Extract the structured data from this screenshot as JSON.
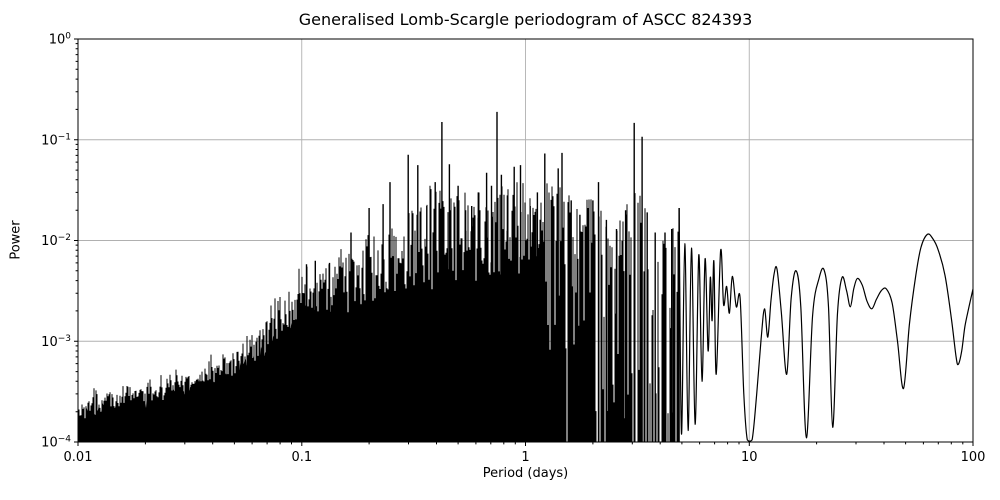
{
  "figure": {
    "background": "#ffffff",
    "text_color": "#000000"
  },
  "chart_data": {
    "type": "line",
    "title": "Generalised Lomb-Scargle periodogram of ASCC 824393",
    "xlabel": "Period (days)",
    "ylabel": "Power",
    "x_scale": "log",
    "y_scale": "log",
    "xlim": [
      0.01,
      100
    ],
    "ylim": [
      0.0001,
      1
    ],
    "grid": true,
    "legend": "none",
    "line_color": "#000000",
    "grid_color": "#b0b0b0",
    "x_ticks": [
      {
        "value": 0.01,
        "label": "0.01"
      },
      {
        "value": 0.1,
        "label": "0.1"
      },
      {
        "value": 1,
        "label": "1"
      },
      {
        "value": 10,
        "label": "10"
      },
      {
        "value": 100,
        "label": "100"
      }
    ],
    "y_ticks": [
      {
        "value": 1,
        "base": "10",
        "exp": "0"
      },
      {
        "value": 0.1,
        "base": "10",
        "exp": "−1"
      },
      {
        "value": 0.01,
        "base": "10",
        "exp": "−2"
      },
      {
        "value": 0.001,
        "base": "10",
        "exp": "−3"
      },
      {
        "value": 0.0001,
        "base": "10",
        "exp": "−4"
      }
    ],
    "noise_floor": 0.0001,
    "dense_range": [
      0.01,
      4.86
    ],
    "noise_envelope": [
      [
        0.01,
        0.00028
      ],
      [
        0.02,
        0.0004
      ],
      [
        0.03,
        0.0005
      ],
      [
        0.05,
        0.00085
      ],
      [
        0.07,
        0.0018
      ],
      [
        0.09,
        0.0045
      ],
      [
        0.11,
        0.0055
      ],
      [
        0.14,
        0.007
      ],
      [
        0.17,
        0.009
      ],
      [
        0.2,
        0.012
      ],
      [
        0.24,
        0.012
      ],
      [
        0.28,
        0.018
      ],
      [
        0.33,
        0.03
      ],
      [
        0.38,
        0.035
      ],
      [
        0.43,
        0.04
      ],
      [
        0.48,
        0.035
      ],
      [
        0.55,
        0.028
      ],
      [
        0.62,
        0.035
      ],
      [
        0.7,
        0.045
      ],
      [
        0.78,
        0.04
      ],
      [
        0.88,
        0.032
      ],
      [
        1.0,
        0.035
      ],
      [
        1.15,
        0.032
      ],
      [
        1.3,
        0.035
      ],
      [
        1.5,
        0.035
      ],
      [
        1.7,
        0.022
      ],
      [
        1.9,
        0.026
      ],
      [
        2.1,
        0.032
      ],
      [
        2.4,
        0.018
      ],
      [
        2.7,
        0.022
      ],
      [
        3.0,
        0.035
      ],
      [
        3.3,
        0.03
      ],
      [
        3.6,
        0.014
      ],
      [
        4.0,
        0.013
      ],
      [
        4.4,
        0.014
      ],
      [
        4.86,
        0.021
      ]
    ],
    "mass_top": [
      [
        0.01,
        0.000165
      ],
      [
        0.02,
        0.00025
      ],
      [
        0.03,
        0.0003
      ],
      [
        0.05,
        0.00045
      ],
      [
        0.07,
        0.0008
      ],
      [
        0.1,
        0.0016
      ],
      [
        0.14,
        0.0019
      ],
      [
        0.2,
        0.002
      ],
      [
        0.27,
        0.0021
      ],
      [
        0.35,
        0.0025
      ],
      [
        0.5,
        0.003
      ],
      [
        0.65,
        0.0035
      ],
      [
        0.74,
        0.004
      ],
      [
        0.9,
        0.0035
      ],
      [
        1.0,
        0.003
      ],
      [
        1.25,
        0.0025
      ]
    ],
    "major_peaks": [
      [
        0.105,
        0.0058
      ],
      [
        0.115,
        0.0063
      ],
      [
        0.133,
        0.006
      ],
      [
        0.166,
        0.012
      ],
      [
        0.2,
        0.021
      ],
      [
        0.231,
        0.023
      ],
      [
        0.248,
        0.038
      ],
      [
        0.299,
        0.071
      ],
      [
        0.33,
        0.056
      ],
      [
        0.362,
        0.022
      ],
      [
        0.395,
        0.038
      ],
      [
        0.423,
        0.15
      ],
      [
        0.457,
        0.057
      ],
      [
        0.5,
        0.035
      ],
      [
        0.54,
        0.02
      ],
      [
        0.575,
        0.022
      ],
      [
        0.615,
        0.03
      ],
      [
        0.67,
        0.047
      ],
      [
        0.705,
        0.035
      ],
      [
        0.746,
        0.189
      ],
      [
        0.78,
        0.045
      ],
      [
        0.83,
        0.028
      ],
      [
        0.89,
        0.054
      ],
      [
        0.95,
        0.056
      ],
      [
        1.05,
        0.022
      ],
      [
        1.13,
        0.03
      ],
      [
        1.22,
        0.073
      ],
      [
        1.4,
        0.052
      ],
      [
        1.456,
        0.074
      ],
      [
        1.6,
        0.025
      ],
      [
        1.75,
        0.018
      ],
      [
        1.9,
        0.021
      ],
      [
        2.0,
        0.025
      ],
      [
        2.12,
        0.038
      ],
      [
        2.3,
        0.016
      ],
      [
        2.55,
        0.013
      ],
      [
        2.8,
        0.02
      ],
      [
        3.06,
        0.147
      ],
      [
        3.32,
        0.107
      ],
      [
        3.5,
        0.019
      ],
      [
        3.8,
        0.012
      ],
      [
        4.2,
        0.012
      ],
      [
        4.5,
        0.013
      ],
      [
        4.86,
        0.021
      ]
    ],
    "smooth_tail": [
      [
        4.86,
        0.021
      ],
      [
        4.98,
        0.00012
      ],
      [
        5.15,
        0.0093
      ],
      [
        5.33,
        0.00013
      ],
      [
        5.52,
        0.0084
      ],
      [
        5.73,
        0.00015
      ],
      [
        5.95,
        0.0072
      ],
      [
        6.15,
        0.0004
      ],
      [
        6.35,
        0.0066
      ],
      [
        6.55,
        0.0008
      ],
      [
        6.7,
        0.0043
      ],
      [
        6.82,
        0.0016
      ],
      [
        6.95,
        0.0062
      ],
      [
        7.12,
        0.00047
      ],
      [
        7.45,
        0.0079
      ],
      [
        7.68,
        0.0023
      ],
      [
        7.92,
        0.0035
      ],
      [
        8.15,
        0.0019
      ],
      [
        8.4,
        0.0044
      ],
      [
        8.75,
        0.0022
      ],
      [
        9.1,
        0.0027
      ],
      [
        9.45,
        0.0003
      ],
      [
        9.8,
        0.000105
      ],
      [
        10.3,
        0.000105
      ],
      [
        10.8,
        0.0003
      ],
      [
        11.3,
        0.00105
      ],
      [
        11.7,
        0.0021
      ],
      [
        12.1,
        0.0011
      ],
      [
        12.5,
        0.0025
      ],
      [
        12.9,
        0.0046
      ],
      [
        13.3,
        0.0052
      ],
      [
        13.9,
        0.002
      ],
      [
        14.7,
        0.00047
      ],
      [
        15.4,
        0.0027
      ],
      [
        16.2,
        0.005
      ],
      [
        17.0,
        0.0022
      ],
      [
        18.0,
        0.00011
      ],
      [
        19.2,
        0.0018
      ],
      [
        20.5,
        0.0042
      ],
      [
        21.6,
        0.0051
      ],
      [
        22.6,
        0.0022
      ],
      [
        23.6,
        0.00014
      ],
      [
        24.8,
        0.0019
      ],
      [
        26.0,
        0.0043
      ],
      [
        27.2,
        0.0032
      ],
      [
        28.3,
        0.0022
      ],
      [
        29.3,
        0.0033
      ],
      [
        30.4,
        0.0042
      ],
      [
        32.0,
        0.0036
      ],
      [
        33.6,
        0.0025
      ],
      [
        35.3,
        0.0021
      ],
      [
        37.0,
        0.0026
      ],
      [
        39.0,
        0.0032
      ],
      [
        41.0,
        0.0033
      ],
      [
        43.5,
        0.0024
      ],
      [
        46.0,
        0.001
      ],
      [
        48.9,
        0.00034
      ],
      [
        52.0,
        0.0015
      ],
      [
        55.5,
        0.0045
      ],
      [
        58.5,
        0.0085
      ],
      [
        62.5,
        0.0115
      ],
      [
        66.0,
        0.0105
      ],
      [
        70.0,
        0.008
      ],
      [
        75.0,
        0.0045
      ],
      [
        80.0,
        0.0017
      ],
      [
        84.0,
        0.0007
      ],
      [
        86.0,
        0.00059
      ],
      [
        89.0,
        0.0008
      ],
      [
        92.0,
        0.0014
      ],
      [
        96.0,
        0.0022
      ],
      [
        100.0,
        0.0033
      ]
    ]
  }
}
